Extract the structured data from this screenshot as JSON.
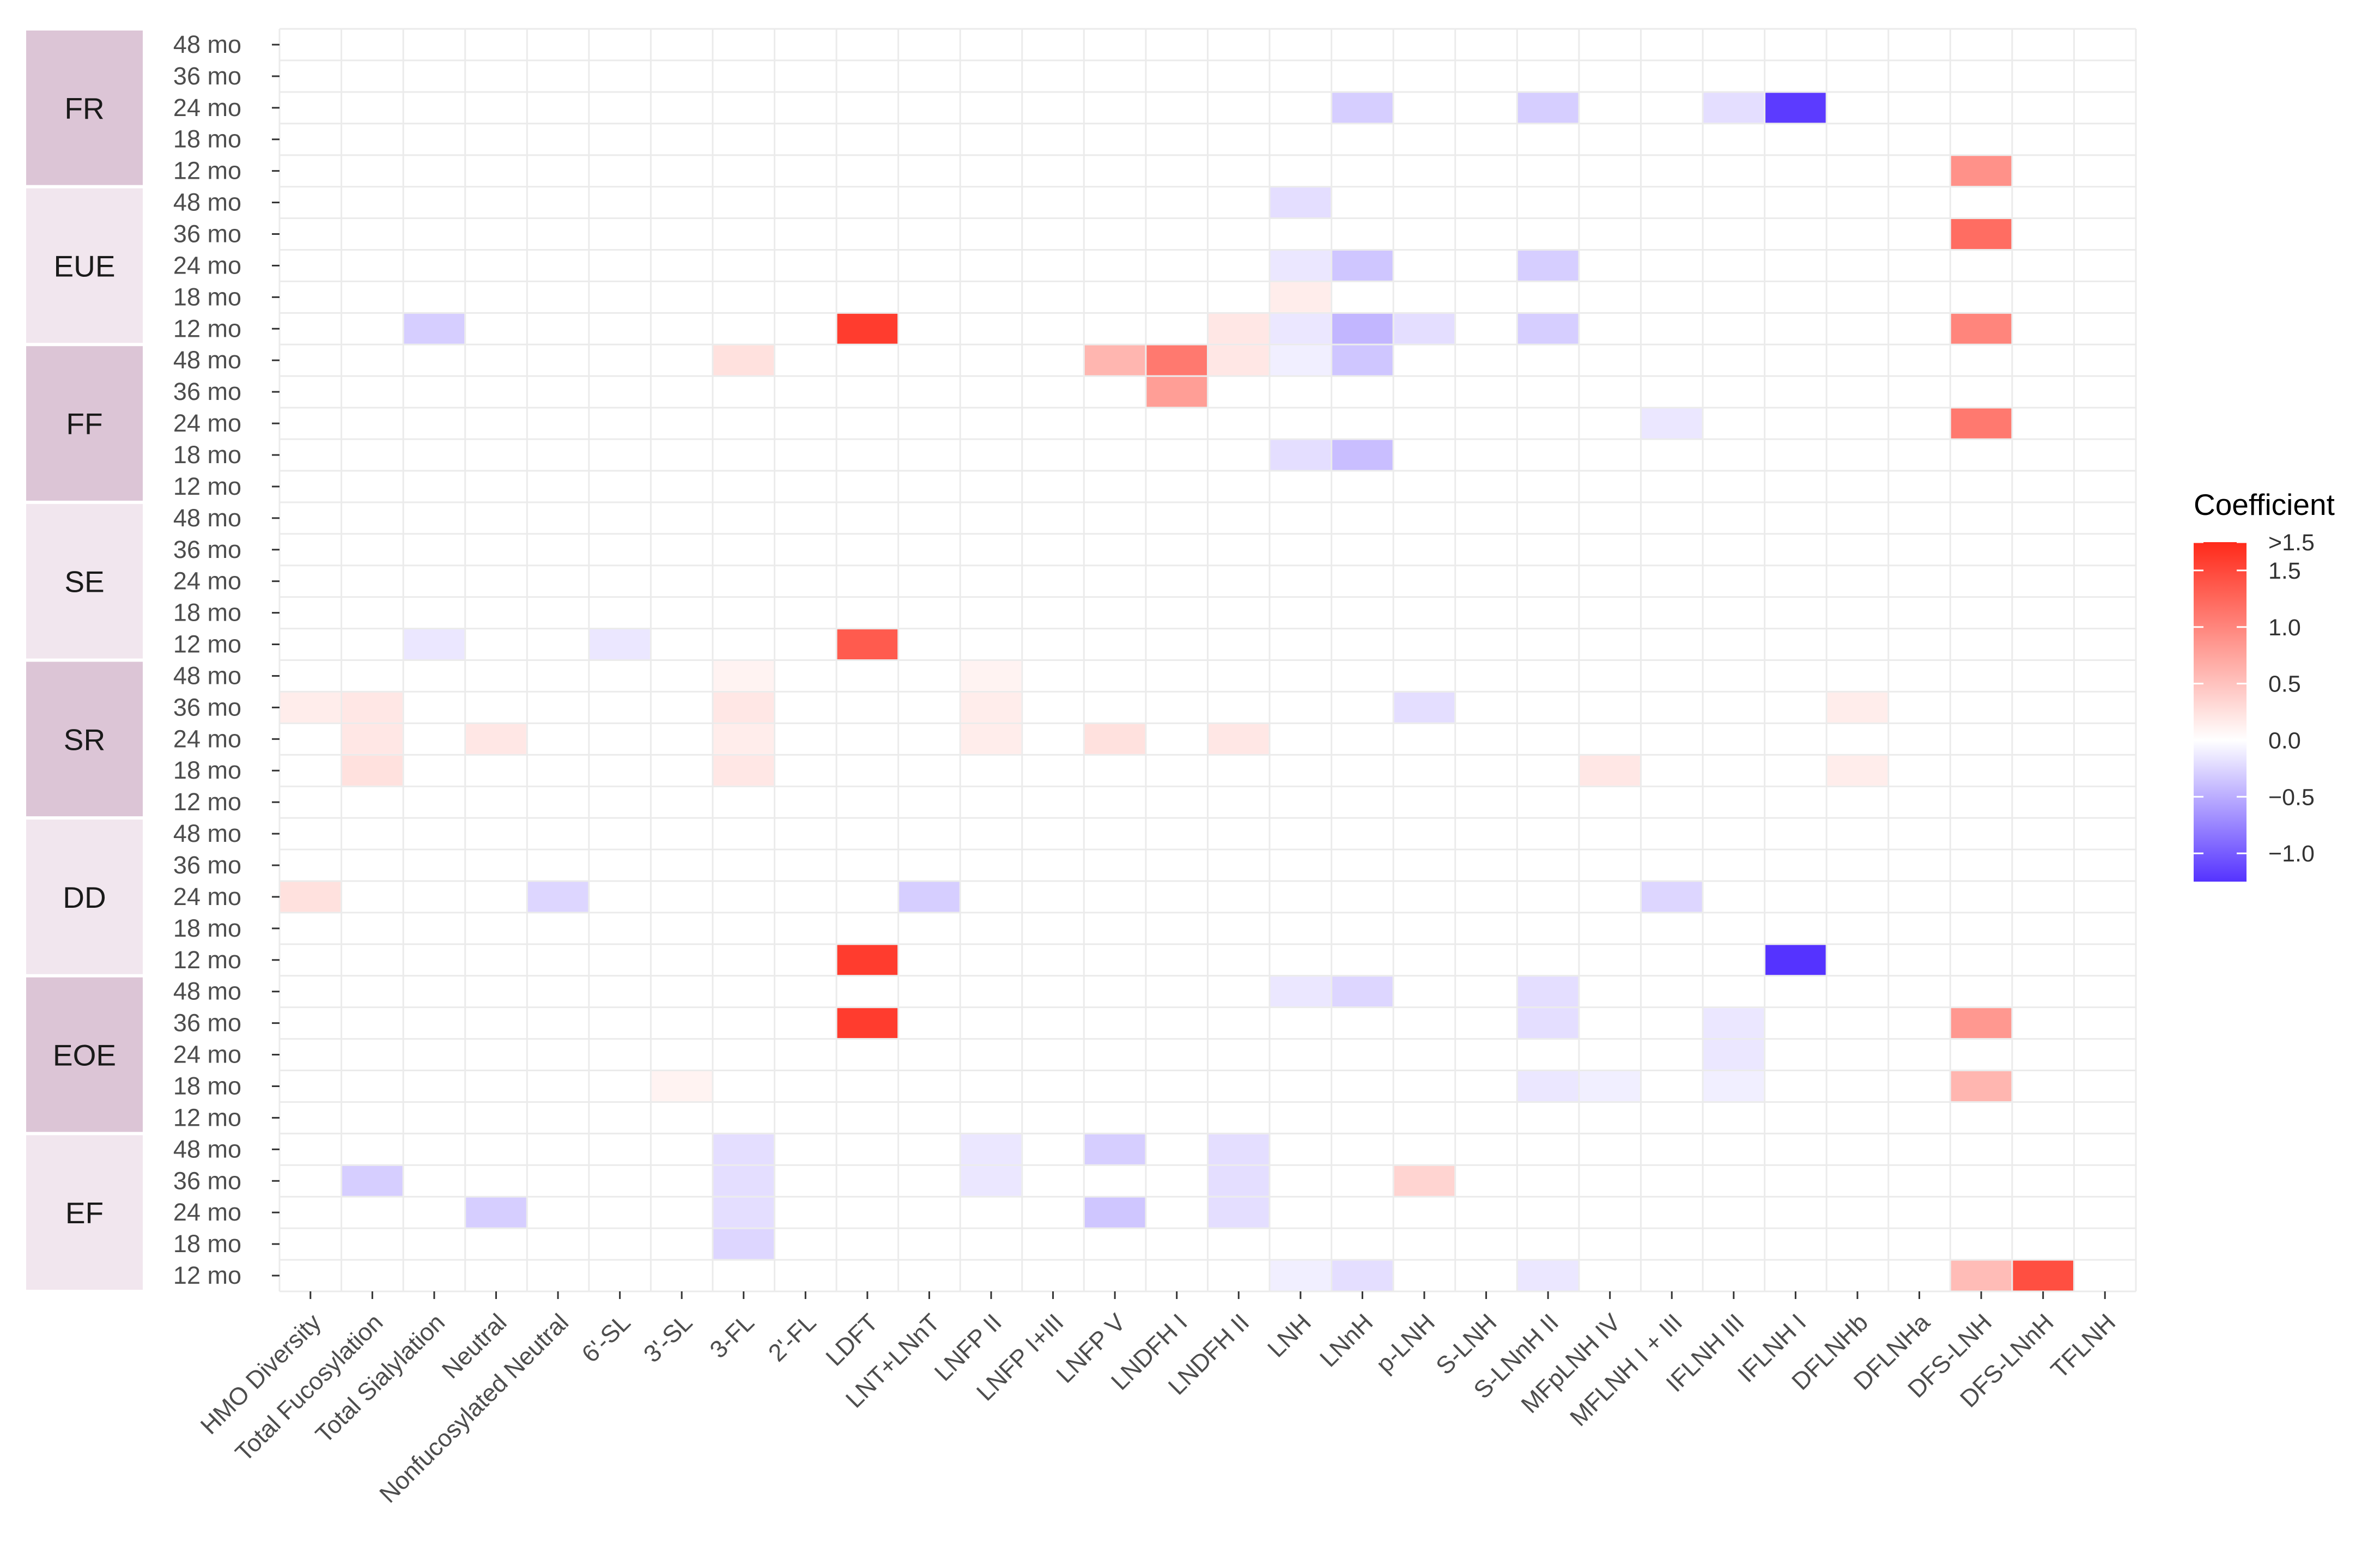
{
  "chart_data": {
    "type": "heatmap",
    "title": "",
    "xlabel": "",
    "ylabel": "",
    "x_categories": [
      "HMO Diversity",
      "Total Fucosylation",
      "Total Sialylation",
      "Neutral",
      "Nonfucosylated Neutral",
      "6'-SL",
      "3'-SL",
      "3-FL",
      "2'-FL",
      "LDFT",
      "LNT+LNnT",
      "LNFP II",
      "LNFP I+III",
      "LNFP V",
      "LNDFH I",
      "LNDFH II",
      "LNH",
      "LNnH",
      "p-LNH",
      "S-LNH",
      "S-LNnH II",
      "MFpLNH IV",
      "MFLNH I + III",
      "IFLNH III",
      "IFLNH I",
      "DFLNHb",
      "DFLNHa",
      "DFS-LNH",
      "DFS-LNnH",
      "TFLNH"
    ],
    "groups": [
      {
        "name": "FR",
        "shade": "#dcc5d6"
      },
      {
        "name": "EUE",
        "shade": "#f1e6ee"
      },
      {
        "name": "FF",
        "shade": "#dcc5d6"
      },
      {
        "name": "SE",
        "shade": "#f1e6ee"
      },
      {
        "name": "SR",
        "shade": "#dcc5d6"
      },
      {
        "name": "DD",
        "shade": "#f1e6ee"
      },
      {
        "name": "EOE",
        "shade": "#dcc5d6"
      },
      {
        "name": "EF",
        "shade": "#f1e6ee"
      }
    ],
    "time_points": [
      "48 mo",
      "36 mo",
      "24 mo",
      "18 mo",
      "12 mo"
    ],
    "values": [
      [
        "FR",
        "24 mo",
        "LNnH",
        -0.3
      ],
      [
        "FR",
        "24 mo",
        "S-LNnH II",
        -0.3
      ],
      [
        "FR",
        "24 mo",
        "IFLNH III",
        -0.2
      ],
      [
        "FR",
        "24 mo",
        "IFLNH I",
        -1.2
      ],
      [
        "FR",
        "12 mo",
        "DFS-LNH",
        0.9
      ],
      [
        "EUE",
        "48 mo",
        "LNH",
        -0.2
      ],
      [
        "EUE",
        "36 mo",
        "DFS-LNH",
        1.2
      ],
      [
        "EUE",
        "24 mo",
        "LNH",
        -0.15
      ],
      [
        "EUE",
        "24 mo",
        "LNnH",
        -0.35
      ],
      [
        "EUE",
        "24 mo",
        "S-LNnH II",
        -0.3
      ],
      [
        "EUE",
        "18 mo",
        "LNH",
        0.15
      ],
      [
        "EUE",
        "12 mo",
        "Total Sialylation",
        -0.3
      ],
      [
        "EUE",
        "12 mo",
        "LDFT",
        1.6
      ],
      [
        "EUE",
        "12 mo",
        "LNDFH II",
        0.2
      ],
      [
        "EUE",
        "12 mo",
        "LNH",
        -0.15
      ],
      [
        "EUE",
        "12 mo",
        "LNnH",
        -0.45
      ],
      [
        "EUE",
        "12 mo",
        "p-LNH",
        -0.2
      ],
      [
        "EUE",
        "12 mo",
        "S-LNnH II",
        -0.3
      ],
      [
        "EUE",
        "12 mo",
        "DFS-LNH",
        1.0
      ],
      [
        "FF",
        "48 mo",
        "3-FL",
        0.25
      ],
      [
        "FF",
        "48 mo",
        "LNFP V",
        0.6
      ],
      [
        "FF",
        "48 mo",
        "LNDFH I",
        1.1
      ],
      [
        "FF",
        "48 mo",
        "LNDFH II",
        0.2
      ],
      [
        "FF",
        "48 mo",
        "LNH",
        -0.1
      ],
      [
        "FF",
        "48 mo",
        "LNnH",
        -0.35
      ],
      [
        "FF",
        "36 mo",
        "LNDFH I",
        0.8
      ],
      [
        "FF",
        "24 mo",
        "MFLNH I + III",
        -0.15
      ],
      [
        "FF",
        "24 mo",
        "DFS-LNH",
        1.1
      ],
      [
        "FF",
        "18 mo",
        "LNH",
        -0.2
      ],
      [
        "FF",
        "18 mo",
        "LNnH",
        -0.4
      ],
      [
        "SE",
        "12 mo",
        "Total Sialylation",
        -0.15
      ],
      [
        "SE",
        "12 mo",
        "6'-SL",
        -0.15
      ],
      [
        "SE",
        "12 mo",
        "LDFT",
        1.35
      ],
      [
        "SR",
        "48 mo",
        "3-FL",
        0.1
      ],
      [
        "SR",
        "48 mo",
        "LNFP II",
        0.1
      ],
      [
        "SR",
        "36 mo",
        "HMO Diversity",
        0.15
      ],
      [
        "SR",
        "36 mo",
        "Total Fucosylation",
        0.2
      ],
      [
        "SR",
        "36 mo",
        "3-FL",
        0.2
      ],
      [
        "SR",
        "36 mo",
        "LNFP II",
        0.15
      ],
      [
        "SR",
        "36 mo",
        "p-LNH",
        -0.2
      ],
      [
        "SR",
        "36 mo",
        "DFLNHb",
        0.15
      ],
      [
        "SR",
        "24 mo",
        "Total Fucosylation",
        0.2
      ],
      [
        "SR",
        "24 mo",
        "Neutral",
        0.2
      ],
      [
        "SR",
        "24 mo",
        "3-FL",
        0.15
      ],
      [
        "SR",
        "24 mo",
        "LNFP II",
        0.15
      ],
      [
        "SR",
        "24 mo",
        "LNFP V",
        0.25
      ],
      [
        "SR",
        "24 mo",
        "LNDFH II",
        0.2
      ],
      [
        "SR",
        "18 mo",
        "Total Fucosylation",
        0.25
      ],
      [
        "SR",
        "18 mo",
        "3-FL",
        0.2
      ],
      [
        "SR",
        "18 mo",
        "MFpLNH IV",
        0.2
      ],
      [
        "SR",
        "18 mo",
        "DFLNHb",
        0.15
      ],
      [
        "DD",
        "24 mo",
        "HMO Diversity",
        0.25
      ],
      [
        "DD",
        "24 mo",
        "Nonfucosylated Neutral",
        -0.25
      ],
      [
        "DD",
        "24 mo",
        "LNT+LNnT",
        -0.3
      ],
      [
        "DD",
        "24 mo",
        "MFLNH I + III",
        -0.25
      ],
      [
        "DD",
        "12 mo",
        "LDFT",
        1.6
      ],
      [
        "DD",
        "12 mo",
        "IFLNH I",
        -1.5
      ],
      [
        "EOE",
        "48 mo",
        "LNH",
        -0.15
      ],
      [
        "EOE",
        "48 mo",
        "LNnH",
        -0.25
      ],
      [
        "EOE",
        "48 mo",
        "S-LNnH II",
        -0.2
      ],
      [
        "EOE",
        "36 mo",
        "LDFT",
        1.6
      ],
      [
        "EOE",
        "36 mo",
        "S-LNnH II",
        -0.2
      ],
      [
        "EOE",
        "36 mo",
        "IFLNH III",
        -0.15
      ],
      [
        "EOE",
        "36 mo",
        "DFS-LNH",
        0.85
      ],
      [
        "EOE",
        "24 mo",
        "IFLNH III",
        -0.15
      ],
      [
        "EOE",
        "18 mo",
        "3'-SL",
        0.1
      ],
      [
        "EOE",
        "18 mo",
        "S-LNnH II",
        -0.15
      ],
      [
        "EOE",
        "18 mo",
        "MFpLNH IV",
        -0.1
      ],
      [
        "EOE",
        "18 mo",
        "IFLNH III",
        -0.1
      ],
      [
        "EOE",
        "18 mo",
        "DFS-LNH",
        0.6
      ],
      [
        "EF",
        "48 mo",
        "3-FL",
        -0.2
      ],
      [
        "EF",
        "48 mo",
        "LNFP II",
        -0.15
      ],
      [
        "EF",
        "48 mo",
        "LNFP V",
        -0.3
      ],
      [
        "EF",
        "48 mo",
        "LNDFH II",
        -0.2
      ],
      [
        "EF",
        "36 mo",
        "Total Fucosylation",
        -0.3
      ],
      [
        "EF",
        "36 mo",
        "3-FL",
        -0.2
      ],
      [
        "EF",
        "36 mo",
        "LNFP II",
        -0.15
      ],
      [
        "EF",
        "36 mo",
        "LNDFH II",
        -0.2
      ],
      [
        "EF",
        "36 mo",
        "p-LNH",
        0.35
      ],
      [
        "EF",
        "24 mo",
        "Neutral",
        -0.3
      ],
      [
        "EF",
        "24 mo",
        "3-FL",
        -0.2
      ],
      [
        "EF",
        "24 mo",
        "LNFP V",
        -0.35
      ],
      [
        "EF",
        "24 mo",
        "LNDFH II",
        -0.2
      ],
      [
        "EF",
        "18 mo",
        "3-FL",
        -0.25
      ],
      [
        "EF",
        "12 mo",
        "LNH",
        -0.1
      ],
      [
        "EF",
        "12 mo",
        "LNnH",
        -0.2
      ],
      [
        "EF",
        "12 mo",
        "S-LNnH II",
        -0.15
      ],
      [
        "EF",
        "12 mo",
        "DFS-LNH",
        0.55
      ],
      [
        "EF",
        "12 mo",
        "DFS-LNnH",
        1.45
      ]
    ],
    "legend": {
      "title": "Coefficient",
      "position": "right",
      "range": [
        -1.25,
        1.75
      ],
      "low_color": "#5533ff",
      "mid_color": "#ffffff",
      "high_color": "#ff2a1a",
      "breaks": [
        {
          "label": ">1.5",
          "value": 1.75
        },
        {
          "label": "1.5",
          "value": 1.5
        },
        {
          "label": "1.0",
          "value": 1.0
        },
        {
          "label": "0.5",
          "value": 0.5
        },
        {
          "label": "0.0",
          "value": 0.0
        },
        {
          "label": "−0.5",
          "value": -0.5
        },
        {
          "label": "−1.0",
          "value": -1.0
        }
      ]
    },
    "grid": true
  }
}
